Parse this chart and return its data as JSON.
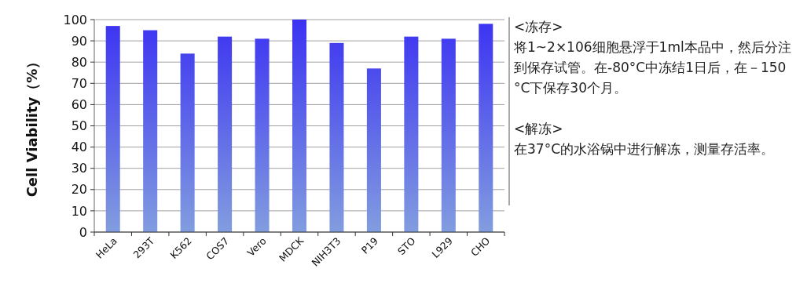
{
  "chart_data": {
    "type": "bar",
    "ylabel": "Cell Viability（%）",
    "categories": [
      "HeLa",
      "293T",
      "K562",
      "COS7",
      "Vero",
      "MDCK",
      "NIH3T3",
      "P19",
      "STO",
      "L929",
      "CHO"
    ],
    "values": [
      97,
      95,
      84,
      92,
      91,
      100,
      89,
      77,
      92,
      91,
      98
    ],
    "color": "#3b32f2",
    "ylim": [
      0,
      100
    ],
    "yticks": [
      0,
      10,
      20,
      30,
      40,
      50,
      60,
      70,
      80,
      90,
      100
    ],
    "grid": "y",
    "annotations": [
      "<冻存>",
      "将1~2×106细胞悬浮于1ml本品中，然后分注到保存试管。在-80°C中冻结1日后，在－150°C下保存30个月。",
      "<解冻>",
      "在37°C的水浴锅中进行解冻，测量存活率。"
    ]
  }
}
